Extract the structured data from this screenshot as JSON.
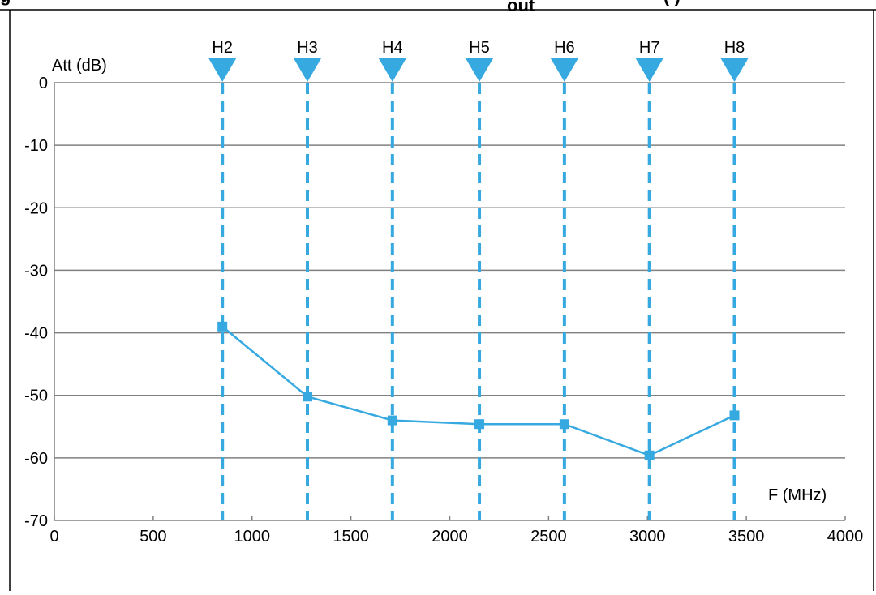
{
  "header_fragments": {
    "left": "g",
    "middle": "out",
    "right": "(                    )"
  },
  "chart_data": {
    "type": "line",
    "title": "",
    "xlabel": "F (MHz)",
    "ylabel": "Att (dB)",
    "xlim": [
      0,
      4000
    ],
    "ylim": [
      -70,
      0
    ],
    "x_ticks": [
      0,
      500,
      1000,
      1500,
      2000,
      2500,
      3000,
      3500,
      4000
    ],
    "y_ticks": [
      0,
      -10,
      -20,
      -30,
      -40,
      -50,
      -60,
      -70
    ],
    "grid": "horizontal",
    "harmonics": [
      {
        "label": "H2",
        "x": 850
      },
      {
        "label": "H3",
        "x": 1280
      },
      {
        "label": "H4",
        "x": 1710
      },
      {
        "label": "H5",
        "x": 2150
      },
      {
        "label": "H6",
        "x": 2580
      },
      {
        "label": "H7",
        "x": 3010
      },
      {
        "label": "H8",
        "x": 3440
      }
    ],
    "series": [
      {
        "x": [
          850,
          1280,
          1710,
          2150,
          2580,
          3010,
          3440
        ],
        "values": [
          -39,
          -50.2,
          -54,
          -54.6,
          -54.6,
          -59.6,
          -53.2
        ]
      }
    ],
    "colors": {
      "accent": "#36A9E0",
      "grid": "#808080",
      "axis": "#808080",
      "frame": "#000000"
    }
  }
}
